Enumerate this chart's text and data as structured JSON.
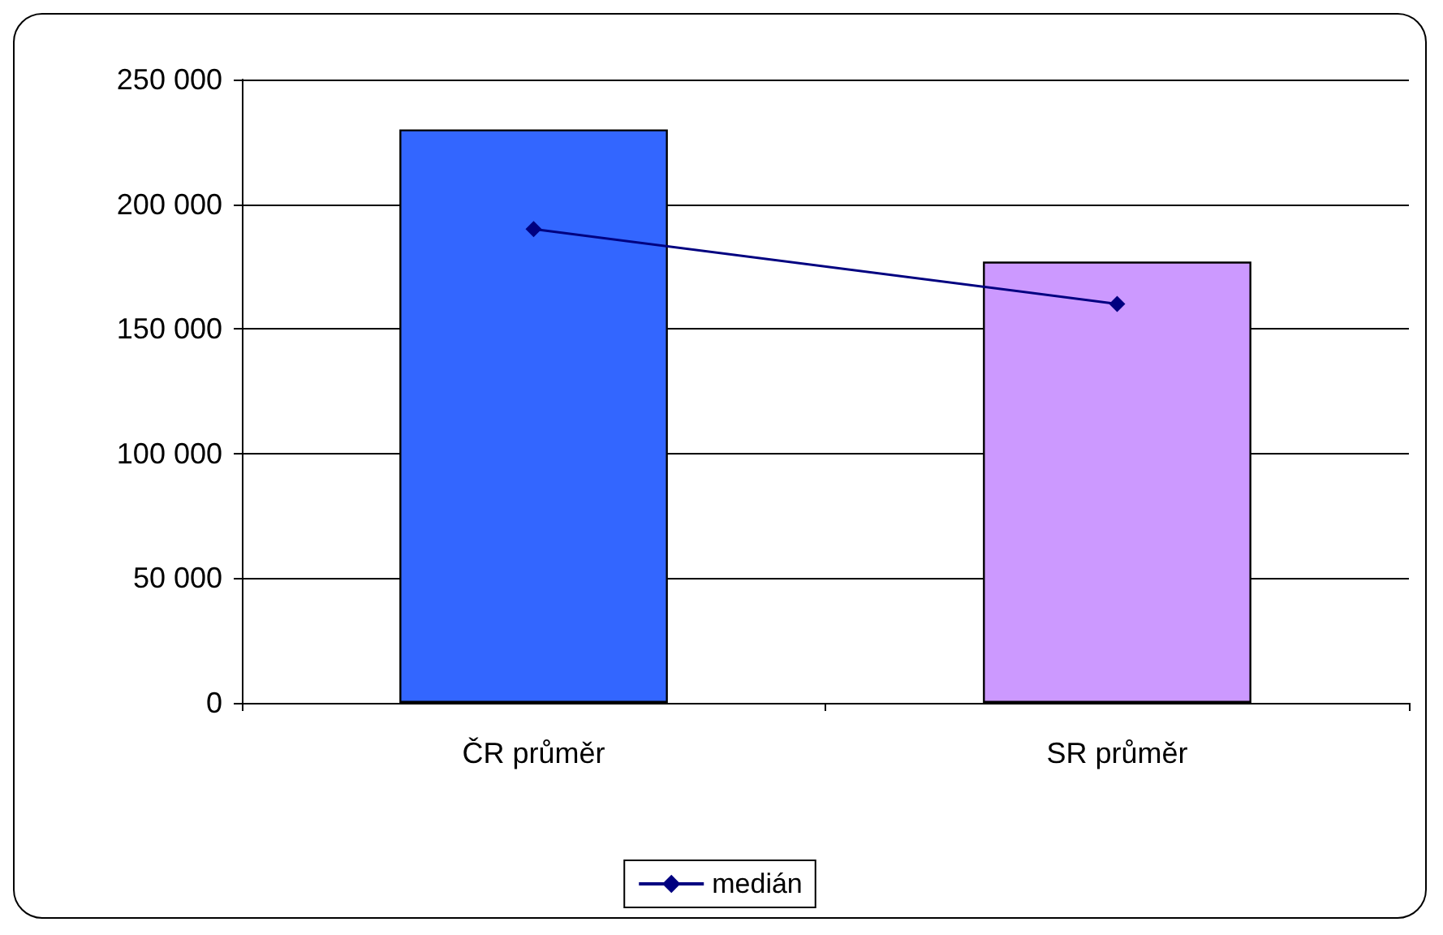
{
  "chart_data": {
    "type": "bar",
    "categories": [
      "ČR průměr",
      "SR průměr"
    ],
    "series": [
      {
        "colors": [
          "#3366ff",
          "#cc99ff"
        ],
        "values": [
          230000,
          177000
        ]
      },
      {
        "type": "line",
        "name": "medián",
        "color": "#000080",
        "values": [
          190000,
          160000
        ],
        "marker": "diamond"
      }
    ],
    "ylim": [
      0,
      250000
    ],
    "yticks": [
      0,
      50000,
      100000,
      150000,
      200000,
      250000
    ],
    "grid": "y",
    "legend": "bottom"
  }
}
